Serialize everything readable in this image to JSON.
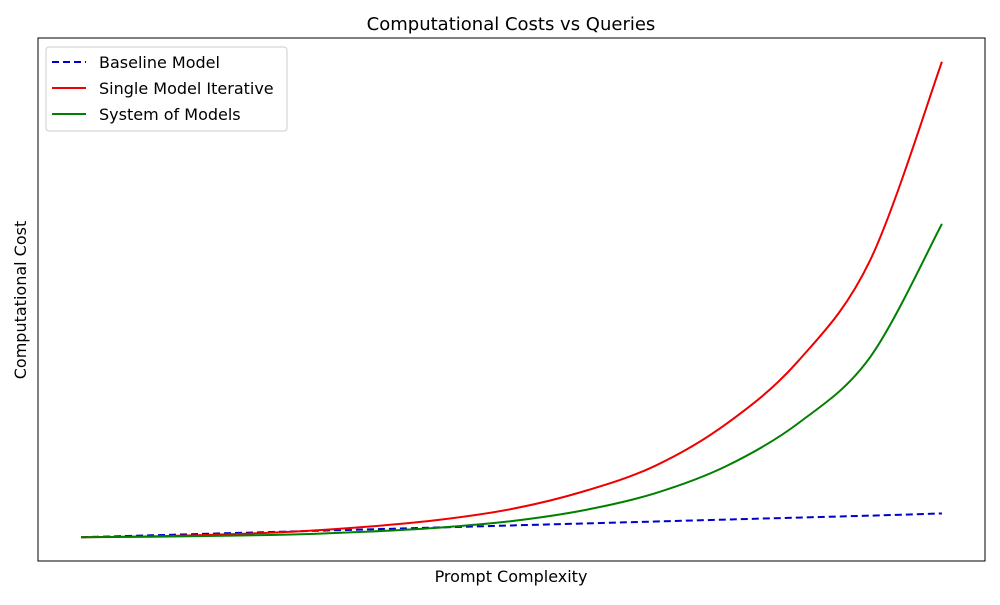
{
  "chart_data": {
    "type": "line",
    "title": "Computational Costs vs Queries",
    "xlabel": "Prompt Complexity",
    "ylabel": "Computational Cost",
    "x_ticks_visible": false,
    "y_ticks_visible": false,
    "grid": false,
    "legend_position": "top-left",
    "xlim": [
      -0.05,
      1.05
    ],
    "ylim": [
      -0.5,
      10.5
    ],
    "x": [
      0,
      0.0833,
      0.1667,
      0.25,
      0.3333,
      0.4167,
      0.5,
      0.5833,
      0.6667,
      0.75,
      0.8333,
      0.9167,
      1.0
    ],
    "series": [
      {
        "name": "Baseline Model",
        "color": "#0000cc",
        "style": "dashed",
        "values": [
          0.0,
          0.041,
          0.083,
          0.124,
          0.165,
          0.206,
          0.248,
          0.289,
          0.33,
          0.372,
          0.413,
          0.454,
          0.5
        ]
      },
      {
        "name": "Single Model Iterative",
        "color": "#ee0000",
        "style": "solid",
        "values": [
          0.0,
          0.018,
          0.059,
          0.12,
          0.222,
          0.367,
          0.593,
          0.962,
          1.5,
          2.39,
          3.71,
          5.83,
          10.0
        ]
      },
      {
        "name": "System of Models",
        "color": "#008000",
        "style": "solid",
        "values": [
          0.0,
          0.011,
          0.03,
          0.06,
          0.118,
          0.203,
          0.339,
          0.565,
          0.924,
          1.5,
          2.4,
          3.79,
          6.59
        ]
      }
    ]
  }
}
